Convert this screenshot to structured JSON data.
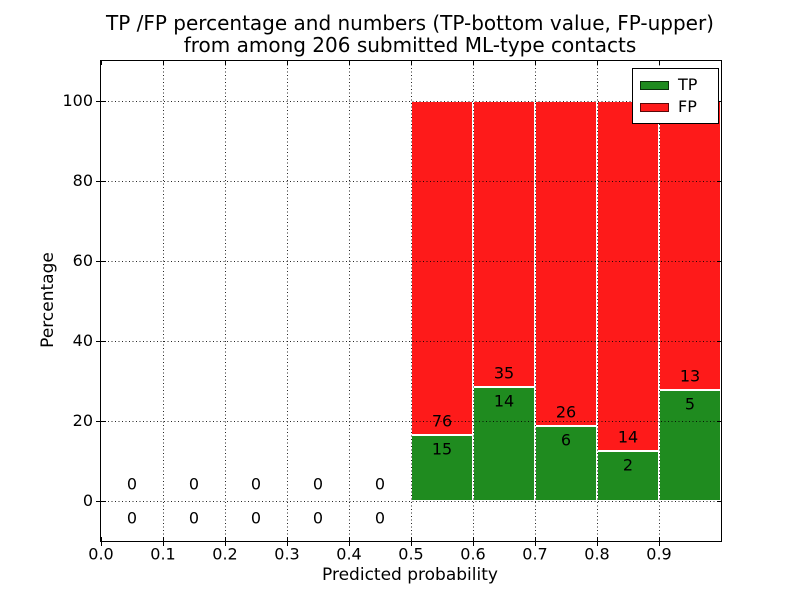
{
  "figure": {
    "title_line1": "TP /FP percentage and numbers (TP-bottom value, FP-upper)",
    "title_line2": "from among 206 submitted ML-type contacts",
    "xlabel": "Predicted probability",
    "ylabel": "Percentage"
  },
  "legend": {
    "items": [
      {
        "label": "TP",
        "color": "#1f8b1f"
      },
      {
        "label": "FP",
        "color": "#fe1a1a"
      }
    ],
    "position": "upper right"
  },
  "chart_data": {
    "type": "bar",
    "stacked": true,
    "title": "TP /FP percentage and numbers (TP-bottom value, FP-upper) from among 206 submitted ML-type contacts",
    "xlabel": "Predicted probability",
    "ylabel": "Percentage",
    "total_contacts": 206,
    "xlim": [
      0.0,
      1.0
    ],
    "ylim": [
      -10,
      110
    ],
    "x_tick_labels": [
      "0.0",
      "0.1",
      "0.2",
      "0.3",
      "0.4",
      "0.5",
      "0.6",
      "0.7",
      "0.8",
      "0.9"
    ],
    "y_tick_values": [
      0,
      20,
      40,
      60,
      80,
      100
    ],
    "grid": {
      "visible": true,
      "style": "dotted",
      "color": "#000000"
    },
    "legend_entries": [
      "TP",
      "FP"
    ],
    "bins": [
      {
        "x0": 0.0,
        "x1": 0.1,
        "tp_count": 0,
        "fp_count": 0,
        "tp_pct": 0,
        "fp_pct": 0
      },
      {
        "x0": 0.1,
        "x1": 0.2,
        "tp_count": 0,
        "fp_count": 0,
        "tp_pct": 0,
        "fp_pct": 0
      },
      {
        "x0": 0.2,
        "x1": 0.3,
        "tp_count": 0,
        "fp_count": 0,
        "tp_pct": 0,
        "fp_pct": 0
      },
      {
        "x0": 0.3,
        "x1": 0.4,
        "tp_count": 0,
        "fp_count": 0,
        "tp_pct": 0,
        "fp_pct": 0
      },
      {
        "x0": 0.4,
        "x1": 0.5,
        "tp_count": 0,
        "fp_count": 0,
        "tp_pct": 0,
        "fp_pct": 0
      },
      {
        "x0": 0.5,
        "x1": 0.6,
        "tp_count": 15,
        "fp_count": 76,
        "tp_pct": 16.48,
        "fp_pct": 83.52
      },
      {
        "x0": 0.6,
        "x1": 0.7,
        "tp_count": 14,
        "fp_count": 35,
        "tp_pct": 28.57,
        "fp_pct": 71.43
      },
      {
        "x0": 0.7,
        "x1": 0.8,
        "tp_count": 6,
        "fp_count": 26,
        "tp_pct": 18.75,
        "fp_pct": 81.25
      },
      {
        "x0": 0.8,
        "x1": 0.9,
        "tp_count": 2,
        "fp_count": 14,
        "tp_pct": 12.5,
        "fp_pct": 87.5
      },
      {
        "x0": 0.9,
        "x1": 1.0,
        "tp_count": 5,
        "fp_count": 13,
        "tp_pct": 27.78,
        "fp_pct": 72.22
      }
    ],
    "colors": {
      "tp": "#1f8b1f",
      "fp": "#fe1a1a",
      "bar_edge": "#ffffff",
      "text": "#000000"
    }
  }
}
